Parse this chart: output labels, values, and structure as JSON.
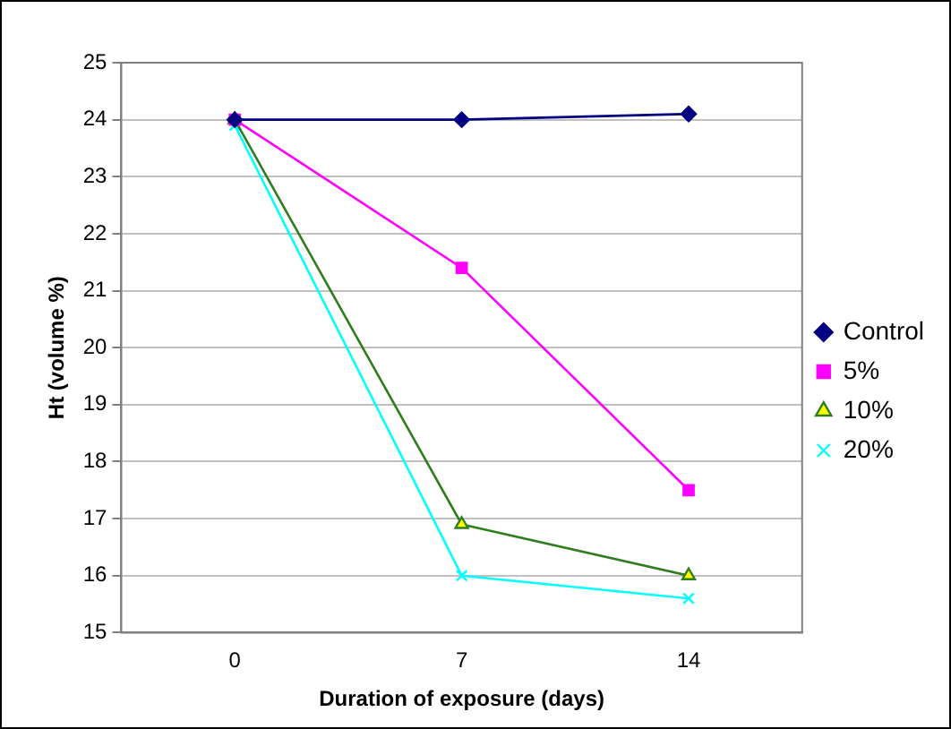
{
  "chart_data": {
    "type": "line",
    "xlabel": "Duration of exposure (days)",
    "ylabel": "Ht (volume %)",
    "categories": [
      "0",
      "7",
      "14"
    ],
    "series": [
      {
        "name": "Control",
        "color": "#000080",
        "marker": "diamond",
        "values": [
          24,
          24,
          24.1
        ]
      },
      {
        "name": "5%",
        "color": "#ff00ff",
        "marker": "square",
        "values": [
          24,
          21.4,
          17.5
        ]
      },
      {
        "name": "10%",
        "color": "#2e7d1e",
        "marker": "triangle",
        "values": [
          24,
          16.9,
          16
        ]
      },
      {
        "name": "20%",
        "color": "#00ffff",
        "marker": "cross",
        "values": [
          23.9,
          16,
          15.6
        ]
      }
    ],
    "ylim": [
      15,
      25
    ],
    "yticks": [
      15,
      16,
      17,
      18,
      19,
      20,
      21,
      22,
      23,
      24,
      25
    ],
    "grid": "y",
    "legend": "right",
    "line_style": "solid"
  }
}
